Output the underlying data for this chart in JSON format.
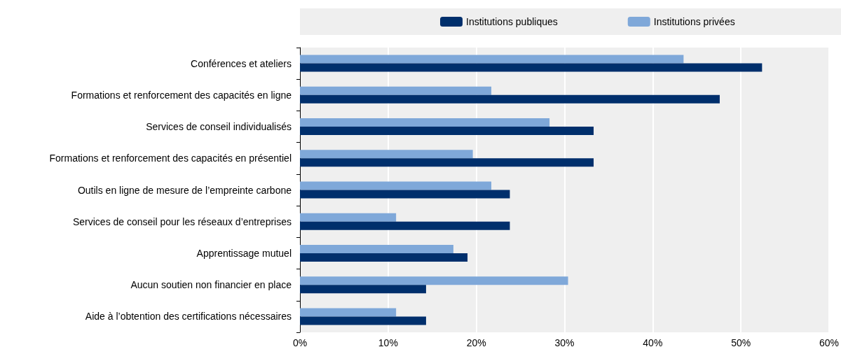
{
  "chart_data": {
    "type": "bar",
    "orientation": "horizontal",
    "categories": [
      "Conférences et ateliers",
      "Formations et renforcement des capacités en ligne",
      "Services de conseil individualisés",
      "Formations et renforcement des capacités en présentiel",
      "Outils en ligne de mesure de l’empreinte carbone",
      "Services de conseil pour les réseaux d’entreprises",
      "Apprentissage mutuel",
      "Aucun soutien non financier en place",
      "Aide à l’obtention des certifications nécessaires"
    ],
    "series": [
      {
        "name": "Institutions publiques",
        "color": "#002f6c",
        "values": [
          52.4,
          47.6,
          33.3,
          33.3,
          23.8,
          23.8,
          19.0,
          14.3,
          14.3
        ]
      },
      {
        "name": "Institutions privées",
        "color": "#7fa8d9",
        "values": [
          43.5,
          21.7,
          28.3,
          19.6,
          21.7,
          10.9,
          17.4,
          30.4,
          10.9
        ]
      }
    ],
    "xlim": [
      0,
      60
    ],
    "xticks": [
      {
        "value": 0,
        "label": "0%"
      },
      {
        "value": 10,
        "label": "10%"
      },
      {
        "value": 20,
        "label": "20%"
      },
      {
        "value": 30,
        "label": "30%"
      },
      {
        "value": 40,
        "label": "40%"
      },
      {
        "value": 50,
        "label": "50%"
      },
      {
        "value": 60,
        "label": "60%"
      }
    ],
    "grid": "x",
    "legend": "top"
  }
}
